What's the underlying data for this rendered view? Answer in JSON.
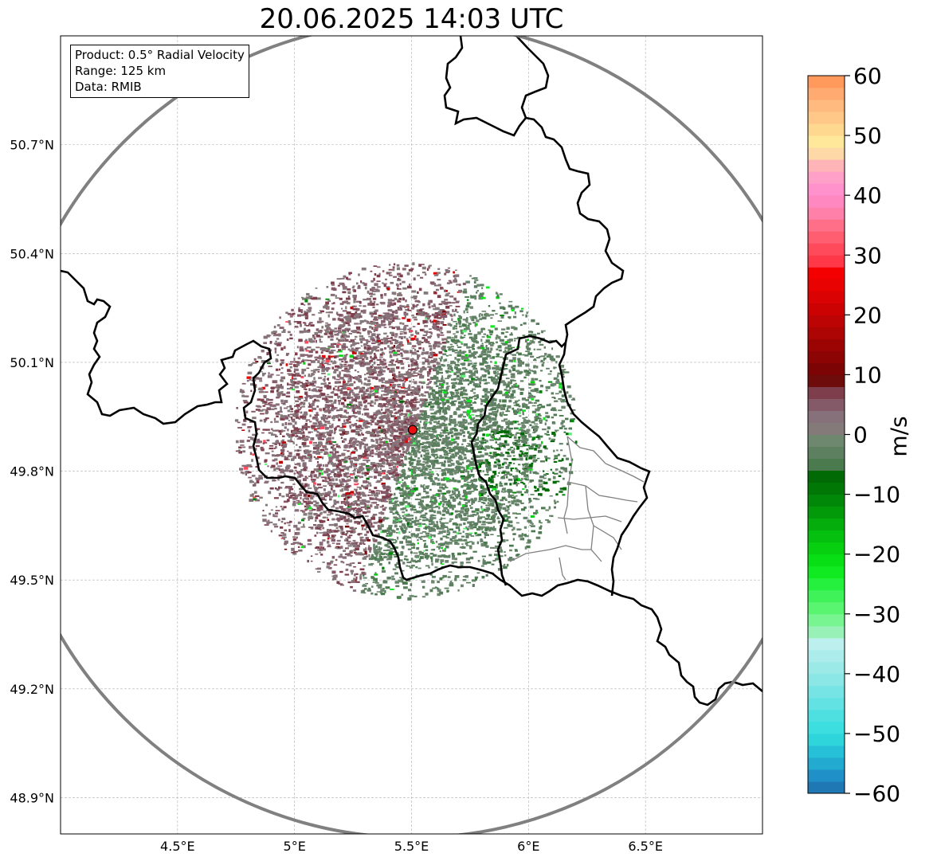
{
  "title": "20.06.2025 14:03 UTC",
  "info_box": {
    "product": "Product: 0.5° Radial Velocity",
    "range": "Range: 125 km",
    "source": "Data: RMIB"
  },
  "map": {
    "lon_range": [
      4.0,
      7.0
    ],
    "lat_range": [
      48.8,
      51.0
    ],
    "lon_ticks": [
      "4.5°E",
      "5°E",
      "5.5°E",
      "6°E",
      "6.5°E"
    ],
    "lon_tick_values": [
      4.5,
      5.0,
      5.5,
      6.0,
      6.5
    ],
    "lat_ticks": [
      "50.7°N",
      "50.4°N",
      "50.1°N",
      "49.8°N",
      "49.5°N",
      "49.2°N",
      "48.9°N"
    ],
    "lat_tick_values": [
      50.7,
      50.4,
      50.1,
      49.8,
      49.5,
      49.2,
      48.9
    ],
    "radar_site": {
      "lon": 5.505,
      "lat": 49.914
    },
    "range_ring_km": 125,
    "colors": {
      "border": "#000000",
      "sub_border": "#808080",
      "range_ring": "#808080",
      "gridline": "#b0b0b0",
      "radar_marker": "#e81010"
    }
  },
  "colorbar": {
    "unit": "m/s",
    "min": -60,
    "max": 60,
    "tick_labels": [
      "60",
      "50",
      "40",
      "30",
      "20",
      "10",
      "0",
      "−10",
      "−20",
      "−30",
      "−40",
      "−50",
      "−60"
    ],
    "tick_values": [
      60,
      50,
      40,
      30,
      20,
      10,
      0,
      -10,
      -20,
      -30,
      -40,
      -50,
      -60
    ],
    "bands": [
      {
        "from": -60,
        "to": -58,
        "color": "#1f77b4"
      },
      {
        "from": -58,
        "to": -56,
        "color": "#2091c8"
      },
      {
        "from": -56,
        "to": -54,
        "color": "#22aad0"
      },
      {
        "from": -54,
        "to": -52,
        "color": "#26c0d8"
      },
      {
        "from": -52,
        "to": -50,
        "color": "#2ed6dc"
      },
      {
        "from": -50,
        "to": -48,
        "color": "#3cdedf"
      },
      {
        "from": -48,
        "to": -46,
        "color": "#4ee0e0"
      },
      {
        "from": -46,
        "to": -44,
        "color": "#62e2e2"
      },
      {
        "from": -44,
        "to": -42,
        "color": "#76e4e4"
      },
      {
        "from": -42,
        "to": -40,
        "color": "#8ae7e6"
      },
      {
        "from": -40,
        "to": -38,
        "color": "#9ceae8"
      },
      {
        "from": -38,
        "to": -36,
        "color": "#acedeb"
      },
      {
        "from": -36,
        "to": -34,
        "color": "#bcefee"
      },
      {
        "from": -34,
        "to": -32,
        "color": "#98f2b8"
      },
      {
        "from": -32,
        "to": -30,
        "color": "#78f590"
      },
      {
        "from": -30,
        "to": -28,
        "color": "#5af570"
      },
      {
        "from": -28,
        "to": -26,
        "color": "#40f25a"
      },
      {
        "from": -26,
        "to": -24,
        "color": "#26f03e"
      },
      {
        "from": -24,
        "to": -22,
        "color": "#10ea20"
      },
      {
        "from": -22,
        "to": -20,
        "color": "#08df14"
      },
      {
        "from": -20,
        "to": -18,
        "color": "#06d010"
      },
      {
        "from": -18,
        "to": -16,
        "color": "#05c00e"
      },
      {
        "from": -16,
        "to": -14,
        "color": "#04ad0c"
      },
      {
        "from": -14,
        "to": -12,
        "color": "#039a0a"
      },
      {
        "from": -12,
        "to": -10,
        "color": "#028808"
      },
      {
        "from": -10,
        "to": -8,
        "color": "#017706"
      },
      {
        "from": -8,
        "to": -6,
        "color": "#016a05"
      },
      {
        "from": -6,
        "to": -4,
        "color": "#4b7a4f"
      },
      {
        "from": -4,
        "to": -2,
        "color": "#5c8060"
      },
      {
        "from": -2,
        "to": 0,
        "color": "#6e8870"
      },
      {
        "from": 0,
        "to": 2,
        "color": "#857a7a"
      },
      {
        "from": 2,
        "to": 4,
        "color": "#86707a"
      },
      {
        "from": 4,
        "to": 6,
        "color": "#845a68"
      },
      {
        "from": 6,
        "to": 8,
        "color": "#7e3e4c"
      },
      {
        "from": 8,
        "to": 10,
        "color": "#6e0b0b"
      },
      {
        "from": 10,
        "to": 12,
        "color": "#7c0404"
      },
      {
        "from": 12,
        "to": 14,
        "color": "#8c0404"
      },
      {
        "from": 14,
        "to": 16,
        "color": "#9c0404"
      },
      {
        "from": 16,
        "to": 18,
        "color": "#ad0404"
      },
      {
        "from": 18,
        "to": 20,
        "color": "#bd0404"
      },
      {
        "from": 20,
        "to": 22,
        "color": "#cc0202"
      },
      {
        "from": 22,
        "to": 24,
        "color": "#da0202"
      },
      {
        "from": 24,
        "to": 26,
        "color": "#e80202"
      },
      {
        "from": 26,
        "to": 28,
        "color": "#f50000"
      },
      {
        "from": 28,
        "to": 30,
        "color": "#ff3848"
      },
      {
        "from": 30,
        "to": 32,
        "color": "#ff4a5c"
      },
      {
        "from": 32,
        "to": 34,
        "color": "#ff5e70"
      },
      {
        "from": 34,
        "to": 36,
        "color": "#ff7088"
      },
      {
        "from": 36,
        "to": 38,
        "color": "#ff80a8"
      },
      {
        "from": 38,
        "to": 40,
        "color": "#ff88c0"
      },
      {
        "from": 40,
        "to": 42,
        "color": "#ff92cc"
      },
      {
        "from": 42,
        "to": 44,
        "color": "#ffa0c8"
      },
      {
        "from": 44,
        "to": 46,
        "color": "#ffb4b8"
      },
      {
        "from": 46,
        "to": 48,
        "color": "#ffd8a8"
      },
      {
        "from": 48,
        "to": 50,
        "color": "#ffe89a"
      },
      {
        "from": 50,
        "to": 52,
        "color": "#ffd890"
      },
      {
        "from": 52,
        "to": 54,
        "color": "#ffc888"
      },
      {
        "from": 54,
        "to": 56,
        "color": "#ffba80"
      },
      {
        "from": 56,
        "to": 58,
        "color": "#ffaa70"
      },
      {
        "from": 58,
        "to": 60,
        "color": "#ff9a5c"
      }
    ]
  }
}
